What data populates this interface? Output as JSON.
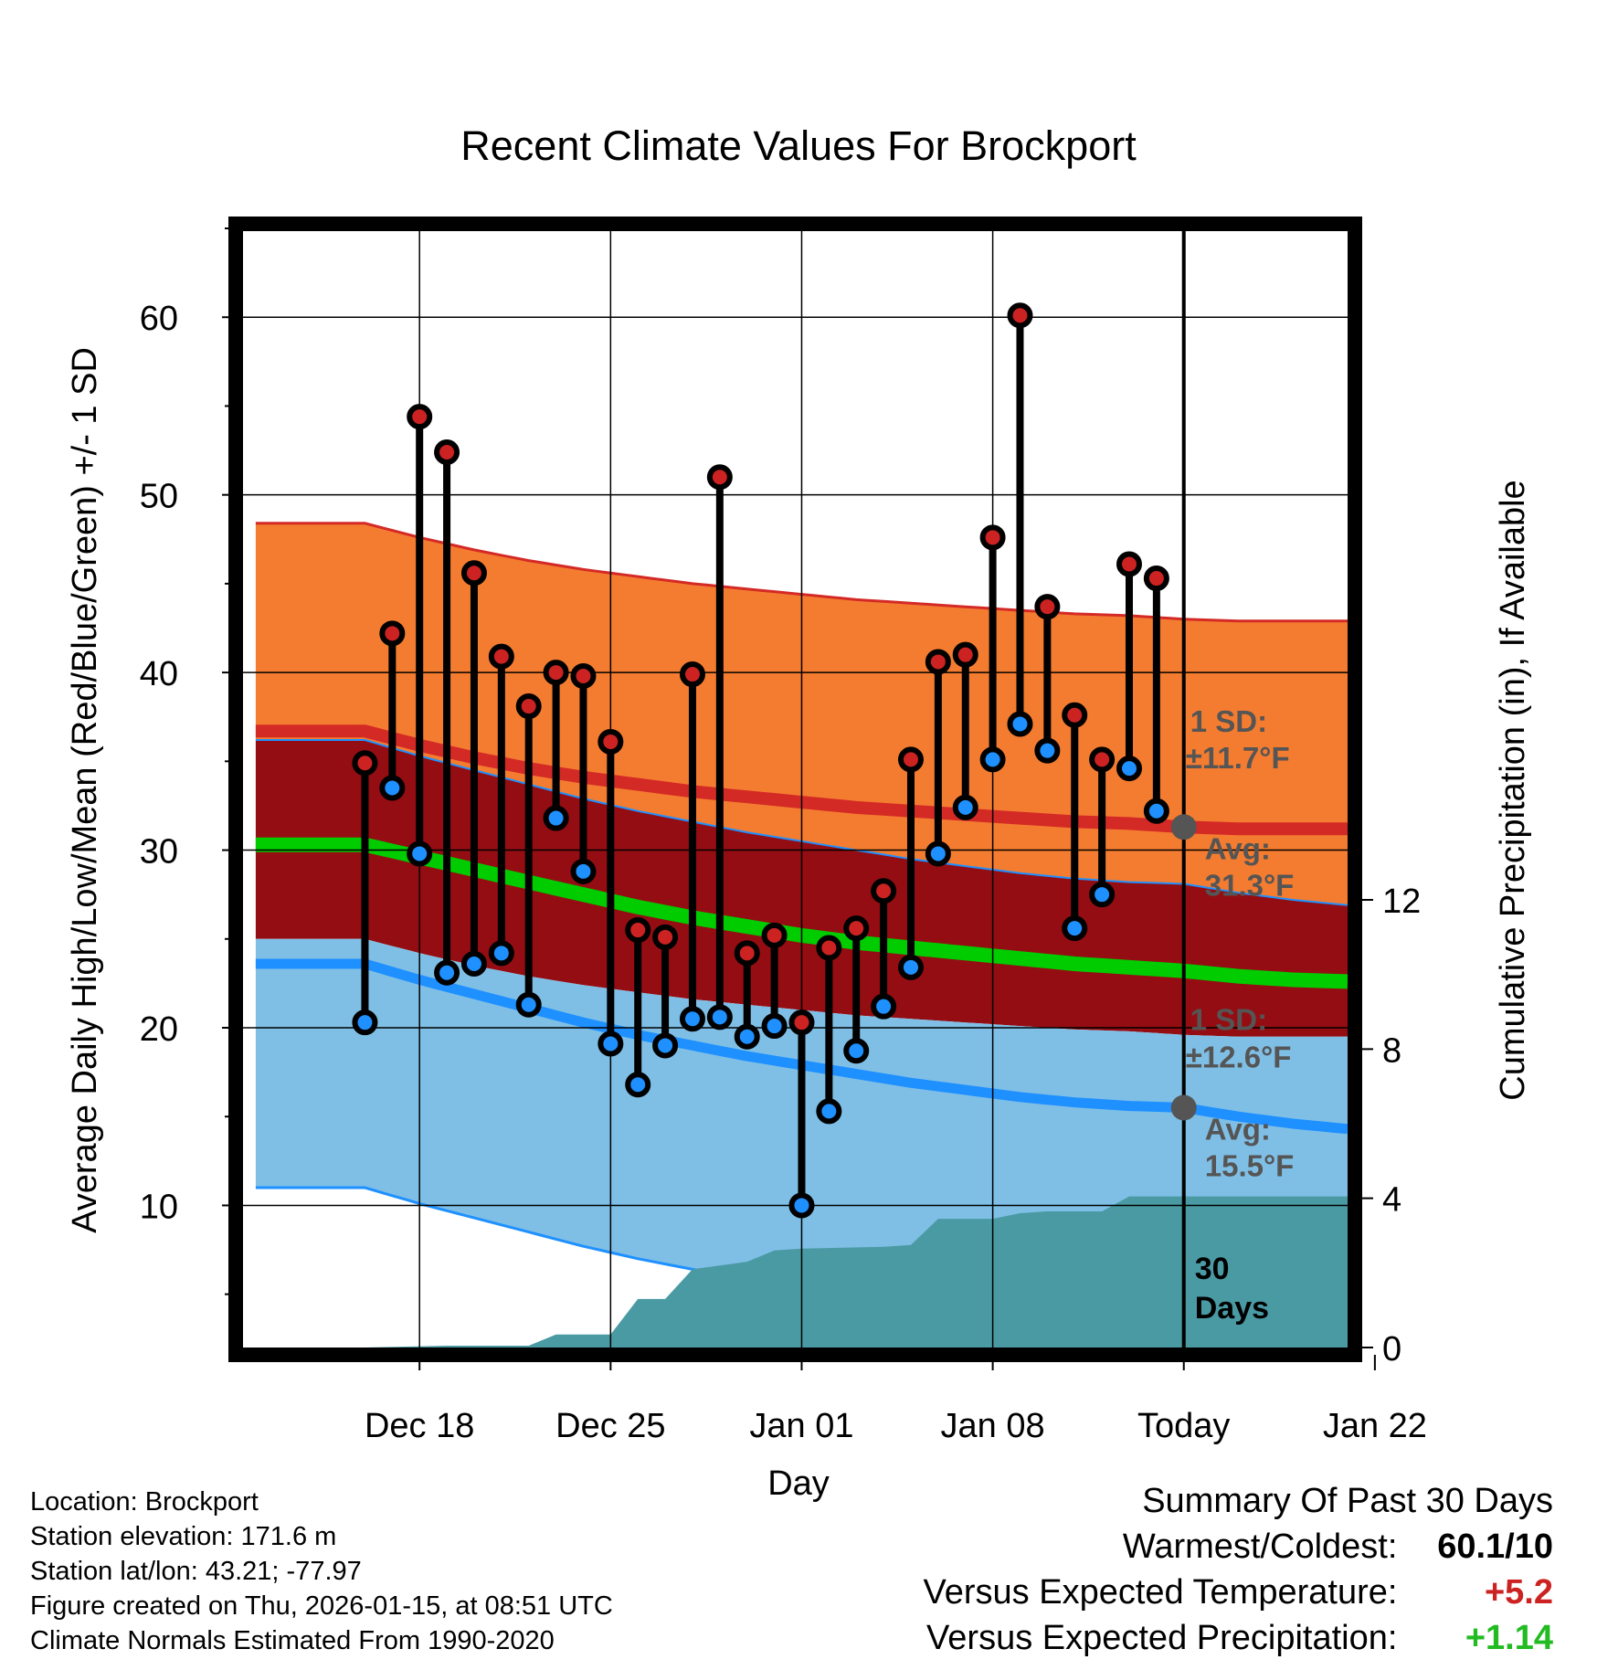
{
  "chart_data": {
    "type": "line",
    "title": "Recent Climate Values For Brockport",
    "xlabel": "Day",
    "ylabel": "Average Daily High/Low/Mean (Red/Blue/Green) +/- 1 SD",
    "y2label": "Cumulative Precipitation (in), If Available",
    "ylim": [
      2,
      65
    ],
    "y2lim": [
      0,
      30
    ],
    "xlim_days": [
      -34.5,
      6
    ],
    "yticks": [
      10,
      20,
      30,
      40,
      50,
      60
    ],
    "y2ticks": [
      0,
      4,
      8,
      12
    ],
    "xticks": [
      {
        "day": -28,
        "label": "Dec 18"
      },
      {
        "day": -21,
        "label": "Dec 25"
      },
      {
        "day": -14,
        "label": "Jan 01"
      },
      {
        "day": -7,
        "label": "Jan 08"
      },
      {
        "day": 0,
        "label": "Today"
      },
      {
        "day": 7,
        "label": "Jan 22"
      }
    ],
    "grid": true,
    "today_marker": {
      "day": 0,
      "label_line1": "30",
      "label_line2": "Days"
    },
    "observed": {
      "days": [
        -30,
        -29,
        -28,
        -27,
        -26,
        -25,
        -24,
        -23,
        -22,
        -21,
        -20,
        -19,
        -18,
        -17,
        -16,
        -15,
        -14,
        -13,
        -12,
        -11,
        -10,
        -9,
        -8,
        -7,
        -6,
        -5,
        -4,
        -3,
        -2,
        -1
      ],
      "high": [
        34.9,
        42.2,
        54.4,
        52.4,
        45.6,
        40.9,
        38.1,
        40.0,
        39.8,
        36.1,
        25.5,
        25.1,
        39.9,
        51.0,
        24.2,
        25.2,
        20.3,
        24.5,
        25.6,
        27.7,
        35.1,
        40.6,
        41.0,
        47.6,
        60.1,
        43.7,
        37.6,
        35.1,
        46.1,
        45.3
      ],
      "low": [
        20.3,
        33.5,
        29.8,
        23.1,
        23.6,
        24.2,
        21.3,
        31.8,
        28.8,
        19.1,
        16.8,
        19.0,
        20.5,
        20.6,
        19.5,
        20.1,
        10.0,
        15.3,
        18.7,
        21.2,
        23.4,
        29.8,
        32.4,
        35.1,
        37.1,
        35.6,
        25.6,
        27.5,
        34.6,
        32.2
      ]
    },
    "normals": {
      "days": [
        -30,
        -28,
        -26,
        -24,
        -22,
        -20,
        -18,
        -16,
        -14,
        -12,
        -10,
        -8,
        -6,
        -4,
        -2,
        0,
        2,
        4,
        6
      ],
      "high_avg": [
        36.7,
        35.9,
        35.2,
        34.6,
        34.1,
        33.7,
        33.3,
        33.0,
        32.7,
        32.4,
        32.2,
        32.0,
        31.8,
        31.6,
        31.5,
        31.3,
        31.2,
        31.2,
        31.2
      ],
      "high_sd": 11.7,
      "low_avg": [
        23.6,
        22.7,
        21.9,
        21.1,
        20.3,
        19.6,
        19.0,
        18.4,
        17.9,
        17.4,
        16.9,
        16.5,
        16.1,
        15.8,
        15.6,
        15.5,
        15.0,
        14.6,
        14.3
      ],
      "low_sd": 12.6,
      "mean_avg": [
        30.3,
        29.6,
        28.9,
        28.2,
        27.5,
        26.8,
        26.2,
        25.7,
        25.2,
        24.8,
        24.5,
        24.2,
        23.9,
        23.6,
        23.4,
        23.2,
        22.9,
        22.7,
        22.6
      ]
    },
    "precip": {
      "days": [
        -30,
        -27,
        -26,
        -24,
        -23,
        -21,
        -20,
        -19,
        -18,
        -17,
        -16,
        -15,
        -14,
        -11,
        -10,
        -9,
        -8,
        -7,
        -6,
        -5,
        -4,
        -3,
        -2,
        -1,
        0,
        6
      ],
      "cumulative_in": [
        0.0,
        0.05,
        0.05,
        0.05,
        0.35,
        0.35,
        1.3,
        1.3,
        2.1,
        2.2,
        2.3,
        2.6,
        2.65,
        2.7,
        2.75,
        3.45,
        3.45,
        3.45,
        3.6,
        3.65,
        3.65,
        3.65,
        4.05,
        4.05,
        4.05,
        4.05
      ]
    },
    "annotations": {
      "high_sd_label": "1 SD:",
      "high_sd_value": "±11.7°F",
      "high_avg_label": "Avg:",
      "high_avg_value": "31.3°F",
      "low_sd_label": "1 SD:",
      "low_sd_value": "±12.6°F",
      "low_avg_label": "Avg:",
      "low_avg_value": "15.5°F"
    },
    "colors": {
      "high_band": "#f47c30",
      "high_line": "#d42a26",
      "mid_band": "#940d12",
      "low_band": "#7fbfe6",
      "low_line": "#1e90ff",
      "mean_line": "#00cc00",
      "precip": "#4a9aa4",
      "high_dot": "#cc2222",
      "low_dot": "#1e90ff",
      "avg_dot": "#555555",
      "annotation": "#555555"
    }
  },
  "meta": {
    "location": "Location: Brockport",
    "elevation": "Station elevation: 171.6 m",
    "latlon": "Station lat/lon: 43.21; -77.97",
    "created": "Figure created on Thu, 2026-01-15, at 08:51 UTC",
    "normals": "Climate Normals Estimated From 1990-2020"
  },
  "summary": {
    "title": "Summary Of Past 30 Days",
    "warm_cold_label": "Warmest/Coldest:",
    "warm_cold_value": "60.1/10",
    "temp_label": "Versus Expected Temperature:",
    "temp_value": "+5.2",
    "temp_color": "#cc2222",
    "precip_label": "Versus Expected Precipitation:",
    "precip_value": "+1.14",
    "precip_color": "#22bb22"
  }
}
